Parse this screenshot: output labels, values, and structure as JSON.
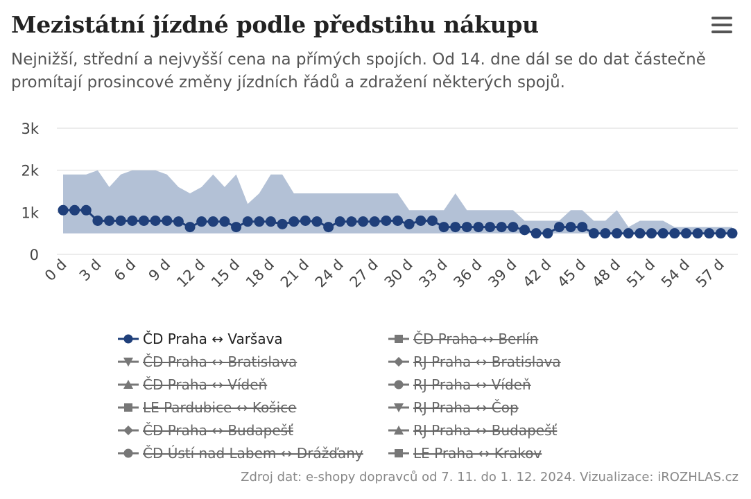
{
  "title": "Mezistátní jízdné podle předstihu nákupu",
  "subtitle": "Nejnižší, střední a nejvyšší cena na přímých spojích. Od 14. dne dál se do dat částečně promítají prosincové změny jízdních řádů a zdražení některých spojů.",
  "menu_icon": "hamburger-menu-icon",
  "credits": "Zdroj dat: e-shopy dopravců od 7. 11. do 1. 12. 2024. Vizualizace: iROZHLAS.cz",
  "colors": {
    "line": "#1f3f7a",
    "band": "#b3c1d6",
    "grid": "#e6e6e6",
    "hidden": "#777777"
  },
  "chart_data": {
    "type": "line",
    "ylim": [
      0,
      3000
    ],
    "yticks": [
      {
        "value": 0,
        "label": "0"
      },
      {
        "value": 1000,
        "label": "1k"
      },
      {
        "value": 2000,
        "label": "2k"
      },
      {
        "value": 3000,
        "label": "3k"
      }
    ],
    "x": [
      0,
      1,
      2,
      3,
      4,
      5,
      6,
      7,
      8,
      9,
      10,
      11,
      12,
      13,
      14,
      15,
      16,
      17,
      18,
      19,
      20,
      21,
      22,
      23,
      24,
      25,
      26,
      27,
      28,
      29,
      30,
      31,
      32,
      33,
      34,
      35,
      36,
      37,
      38,
      39,
      40,
      41,
      42,
      43,
      44,
      45,
      46,
      47,
      48,
      49,
      50,
      51,
      52,
      53,
      54,
      55,
      56,
      57,
      58
    ],
    "xtick_values": [
      0,
      3,
      6,
      9,
      12,
      15,
      18,
      21,
      24,
      27,
      30,
      33,
      36,
      39,
      42,
      45,
      48,
      51,
      54,
      57
    ],
    "xtick_labels": [
      "0 d",
      "3 d",
      "6 d",
      "9 d",
      "12 d",
      "15 d",
      "18 d",
      "21 d",
      "24 d",
      "27 d",
      "30 d",
      "33 d",
      "36 d",
      "39 d",
      "42 d",
      "45 d",
      "48 d",
      "51 d",
      "54 d",
      "57 d"
    ],
    "series": [
      {
        "name": "ČD Praha ↔ Varšava",
        "marker": "circle",
        "visible": true,
        "values": [
          1050,
          1050,
          1050,
          800,
          800,
          800,
          800,
          800,
          800,
          800,
          780,
          650,
          780,
          780,
          780,
          650,
          780,
          780,
          780,
          720,
          780,
          800,
          780,
          650,
          780,
          780,
          780,
          780,
          800,
          800,
          720,
          800,
          800,
          650,
          650,
          650,
          650,
          650,
          650,
          650,
          580,
          500,
          500,
          650,
          650,
          650,
          500,
          500,
          500,
          500,
          500,
          500,
          500,
          500,
          500,
          500,
          500,
          500,
          500
        ],
        "range_low": [
          500,
          500,
          500,
          500,
          500,
          500,
          500,
          500,
          500,
          500,
          500,
          500,
          500,
          500,
          500,
          500,
          500,
          500,
          500,
          500,
          500,
          500,
          500,
          500,
          500,
          500,
          500,
          500,
          500,
          500,
          500,
          500,
          500,
          500,
          500,
          500,
          500,
          500,
          500,
          500,
          500,
          500,
          500,
          500,
          500,
          500,
          500,
          500,
          500,
          500,
          500,
          500,
          500,
          500,
          500,
          500,
          500,
          500,
          500
        ],
        "range_high": [
          1900,
          1900,
          1900,
          2000,
          1600,
          1900,
          2000,
          2000,
          2000,
          1900,
          1600,
          1450,
          1600,
          1900,
          1600,
          1900,
          1200,
          1450,
          1900,
          1900,
          1450,
          1450,
          1450,
          1450,
          1450,
          1450,
          1450,
          1450,
          1450,
          1450,
          1050,
          1050,
          1050,
          1050,
          1450,
          1050,
          1050,
          1050,
          1050,
          1050,
          800,
          800,
          800,
          800,
          1050,
          1050,
          800,
          800,
          1050,
          650,
          800,
          800,
          800,
          650,
          650,
          650,
          650,
          650,
          650
        ]
      },
      {
        "name": "ČD Praha ↔ Berlín",
        "marker": "square",
        "visible": false
      },
      {
        "name": "ČD Praha ↔ Bratislava",
        "marker": "triangle-down",
        "visible": false
      },
      {
        "name": "RJ Praha ↔ Bratislava",
        "marker": "diamond",
        "visible": false
      },
      {
        "name": "ČD Praha ↔ Vídeň",
        "marker": "triangle",
        "visible": false
      },
      {
        "name": "RJ Praha ↔ Vídeň",
        "marker": "circle",
        "visible": false
      },
      {
        "name": "LE Pardubice ↔ Košice",
        "marker": "square",
        "visible": false
      },
      {
        "name": "RJ Praha ↔ Čop",
        "marker": "triangle-down",
        "visible": false
      },
      {
        "name": "ČD Praha ↔ Budapešť",
        "marker": "diamond",
        "visible": false
      },
      {
        "name": "RJ Praha ↔ Budapešť",
        "marker": "triangle",
        "visible": false
      },
      {
        "name": "ČD Ústí nad Labem ↔ Drážďany",
        "marker": "circle",
        "visible": false
      },
      {
        "name": "LE Praha ↔ Krakov",
        "marker": "square",
        "visible": false
      }
    ]
  }
}
